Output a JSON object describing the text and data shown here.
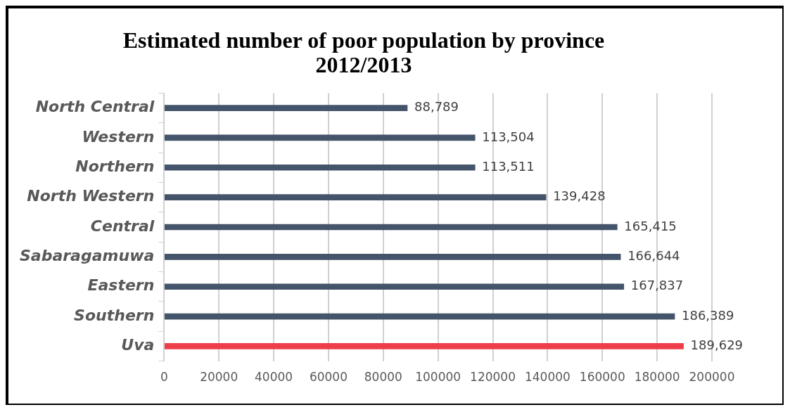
{
  "chart_data": {
    "type": "bar",
    "orientation": "horizontal",
    "title": [
      "Estimated number of poor population by province",
      "2012/2013"
    ],
    "categories": [
      "North Central",
      "Western",
      "Northern",
      "North Western",
      "Central",
      "Sabaragamuwa",
      "Eastern",
      "Southern",
      "Uva"
    ],
    "values": [
      88789,
      113504,
      113511,
      139428,
      165415,
      166644,
      167837,
      186389,
      189629
    ],
    "value_labels": [
      "88,789",
      "113,504",
      "113,511",
      "139,428",
      "165,415",
      "166,644",
      "167,837",
      "186,389",
      "189,629"
    ],
    "colors": [
      "#44546a",
      "#44546a",
      "#44546a",
      "#44546a",
      "#44546a",
      "#44546a",
      "#44546a",
      "#44546a",
      "#ee3e4a"
    ],
    "xlim": [
      0,
      200000
    ],
    "xticks": [
      0,
      20000,
      40000,
      60000,
      80000,
      100000,
      120000,
      140000,
      160000,
      180000,
      200000
    ],
    "grid": "x",
    "legend": false
  }
}
